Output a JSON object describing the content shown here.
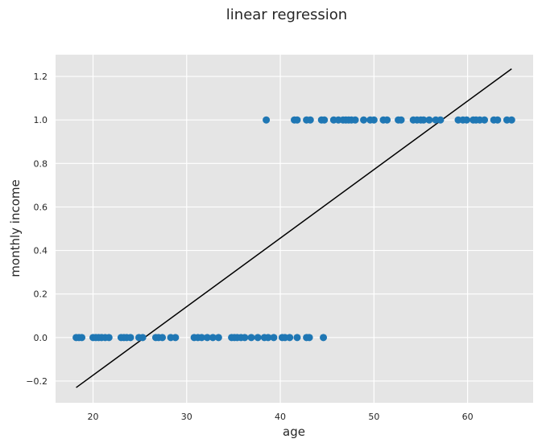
{
  "chart_data": {
    "type": "scatter",
    "title": "linear regression",
    "xlabel": "age",
    "ylabel": "monthly income",
    "xlim": [
      16,
      67
    ],
    "ylim": [
      -0.3,
      1.3
    ],
    "x_ticks": [
      20,
      30,
      40,
      50,
      60
    ],
    "y_ticks": [
      -0.2,
      0.0,
      0.2,
      0.4,
      0.6,
      0.8,
      1.0,
      1.2
    ],
    "y_tick_labels": [
      "−0.2",
      "0.0",
      "0.2",
      "0.4",
      "0.6",
      "0.8",
      "1.0",
      "1.2"
    ],
    "grid": true,
    "background_color": "#e5e5e5",
    "point_color": "#1f77b4",
    "line_color": "#000000",
    "series": [
      {
        "kind": "scatter",
        "points": [
          [
            18.2,
            0
          ],
          [
            18.5,
            0
          ],
          [
            18.8,
            0
          ],
          [
            20.0,
            0
          ],
          [
            20.3,
            0
          ],
          [
            20.6,
            0
          ],
          [
            20.9,
            0
          ],
          [
            21.3,
            0
          ],
          [
            21.7,
            0
          ],
          [
            23.0,
            0
          ],
          [
            23.3,
            0
          ],
          [
            23.6,
            0
          ],
          [
            24.0,
            0
          ],
          [
            24.9,
            0
          ],
          [
            25.3,
            0
          ],
          [
            26.7,
            0
          ],
          [
            27.0,
            0
          ],
          [
            27.4,
            0
          ],
          [
            28.3,
            0
          ],
          [
            28.8,
            0
          ],
          [
            30.8,
            0
          ],
          [
            31.2,
            0
          ],
          [
            31.6,
            0
          ],
          [
            32.2,
            0
          ],
          [
            32.8,
            0
          ],
          [
            33.4,
            0
          ],
          [
            34.8,
            0
          ],
          [
            35.1,
            0
          ],
          [
            35.4,
            0
          ],
          [
            35.8,
            0
          ],
          [
            36.2,
            0
          ],
          [
            36.9,
            0
          ],
          [
            37.6,
            0
          ],
          [
            38.3,
            0
          ],
          [
            38.7,
            0
          ],
          [
            39.3,
            0
          ],
          [
            40.2,
            0
          ],
          [
            40.5,
            0
          ],
          [
            41.0,
            0
          ],
          [
            41.8,
            0
          ],
          [
            42.8,
            0
          ],
          [
            43.1,
            0
          ],
          [
            44.6,
            0
          ],
          [
            38.5,
            1
          ],
          [
            41.5,
            1
          ],
          [
            41.8,
            1
          ],
          [
            42.8,
            1
          ],
          [
            43.2,
            1
          ],
          [
            44.4,
            1
          ],
          [
            44.7,
            1
          ],
          [
            45.7,
            1
          ],
          [
            46.2,
            1
          ],
          [
            46.7,
            1
          ],
          [
            47.0,
            1
          ],
          [
            47.3,
            1
          ],
          [
            47.6,
            1
          ],
          [
            48.0,
            1
          ],
          [
            48.9,
            1
          ],
          [
            49.6,
            1
          ],
          [
            50.0,
            1
          ],
          [
            51.0,
            1
          ],
          [
            51.4,
            1
          ],
          [
            52.6,
            1
          ],
          [
            52.9,
            1
          ],
          [
            54.2,
            1
          ],
          [
            54.6,
            1
          ],
          [
            55.0,
            1
          ],
          [
            55.3,
            1
          ],
          [
            55.9,
            1
          ],
          [
            56.6,
            1
          ],
          [
            57.1,
            1
          ],
          [
            59.0,
            1
          ],
          [
            59.5,
            1
          ],
          [
            59.9,
            1
          ],
          [
            60.6,
            1
          ],
          [
            60.9,
            1
          ],
          [
            61.3,
            1
          ],
          [
            61.8,
            1
          ],
          [
            62.8,
            1
          ],
          [
            63.2,
            1
          ],
          [
            64.2,
            1
          ],
          [
            64.7,
            1
          ]
        ]
      },
      {
        "kind": "line",
        "points": [
          [
            18.2,
            -0.23
          ],
          [
            64.7,
            1.235
          ]
        ]
      }
    ]
  }
}
